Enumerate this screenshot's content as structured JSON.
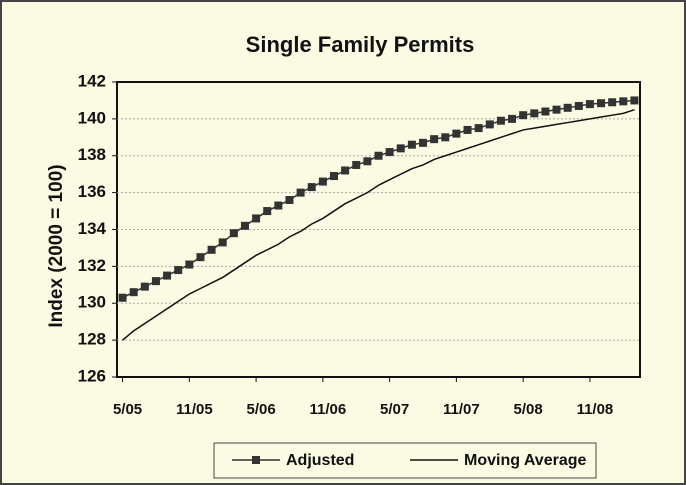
{
  "chart_data": {
    "type": "line",
    "title": "Single Family Permits",
    "y_label": "Index (2000 = 100)",
    "categories": [
      "5/05",
      null,
      null,
      null,
      null,
      null,
      "11/05",
      null,
      null,
      null,
      null,
      null,
      "5/06",
      null,
      null,
      null,
      null,
      null,
      "11/06",
      null,
      null,
      null,
      null,
      null,
      "5/07",
      null,
      null,
      null,
      null,
      null,
      "11/07",
      null,
      null,
      null,
      null,
      null,
      "5/08",
      null,
      null,
      null,
      null,
      null,
      "11/08",
      null,
      null,
      null,
      null
    ],
    "series": [
      {
        "name": "Adjusted",
        "color": "#333333",
        "marker": "square",
        "values": [
          130.3,
          130.6,
          130.9,
          131.2,
          131.5,
          131.8,
          132.1,
          132.5,
          132.9,
          133.3,
          133.8,
          134.2,
          134.6,
          135.0,
          135.3,
          135.6,
          136.0,
          136.3,
          136.6,
          136.9,
          137.2,
          137.5,
          137.7,
          138.0,
          138.2,
          138.4,
          138.6,
          138.7,
          138.9,
          139.0,
          139.2,
          139.4,
          139.5,
          139.7,
          139.9,
          140.0,
          140.2,
          140.3,
          140.4,
          140.5,
          140.6,
          140.7,
          140.8,
          140.85,
          140.9,
          140.95,
          141.0
        ]
      },
      {
        "name": "Moving Average",
        "color": "#111111",
        "values": [
          128.0,
          128.5,
          128.9,
          129.3,
          129.7,
          130.1,
          130.5,
          130.8,
          131.1,
          131.4,
          131.8,
          132.2,
          132.6,
          132.9,
          133.2,
          133.6,
          133.9,
          134.3,
          134.6,
          135.0,
          135.4,
          135.7,
          136.0,
          136.4,
          136.7,
          137.0,
          137.3,
          137.5,
          137.8,
          138.0,
          138.2,
          138.4,
          138.6,
          138.8,
          139.0,
          139.2,
          139.4,
          139.5,
          139.6,
          139.7,
          139.8,
          139.9,
          140.0,
          140.1,
          140.2,
          140.3,
          140.5
        ]
      }
    ],
    "ylim": [
      126,
      142
    ],
    "yticks": [
      126,
      128,
      130,
      132,
      134,
      136,
      138,
      140,
      142
    ],
    "grid": true,
    "legend": "bottom"
  }
}
